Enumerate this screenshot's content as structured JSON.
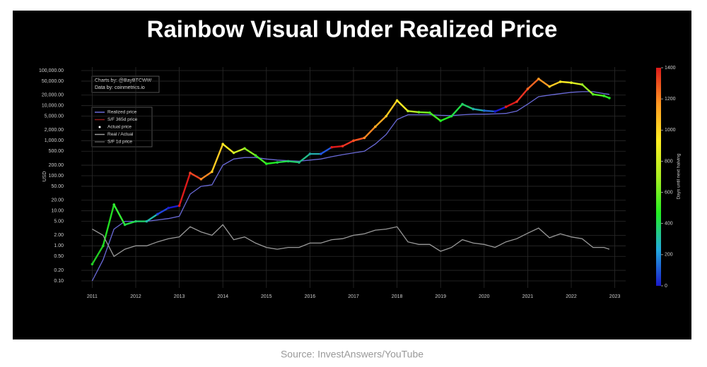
{
  "chart_data": {
    "type": "line",
    "title": "Rainbow Visual Under Realized Price",
    "caption": "Source: InvestAnswers/YouTube",
    "annotations": [
      "Charts by: @BayBTCWW",
      "Data by: coinmetrics.io"
    ],
    "y_label": "USD",
    "log_scale": true,
    "grid": true,
    "x": [
      2011.0,
      2011.25,
      2011.5,
      2011.75,
      2012.0,
      2012.25,
      2012.5,
      2012.75,
      2013.0,
      2013.25,
      2013.5,
      2013.75,
      2014.0,
      2014.25,
      2014.5,
      2014.75,
      2015.0,
      2015.25,
      2015.5,
      2015.75,
      2016.0,
      2016.25,
      2016.5,
      2016.75,
      2017.0,
      2017.25,
      2017.5,
      2017.75,
      2018.0,
      2018.25,
      2018.5,
      2018.75,
      2019.0,
      2019.25,
      2019.5,
      2019.75,
      2020.0,
      2020.25,
      2020.5,
      2020.75,
      2021.0,
      2021.25,
      2021.5,
      2021.75,
      2022.0,
      2022.25,
      2022.5,
      2022.75,
      2022.875
    ],
    "xlim": [
      2010.75,
      2023.25
    ],
    "xticks": [
      2011,
      2012,
      2013,
      2014,
      2015,
      2016,
      2017,
      2018,
      2019,
      2020,
      2021,
      2022,
      2023
    ],
    "ylim": [
      0.1,
      100000
    ],
    "yticks": [
      {
        "value": 0.1,
        "label": "0.10"
      },
      {
        "value": 0.2,
        "label": "0.20"
      },
      {
        "value": 0.5,
        "label": "0.50"
      },
      {
        "value": 1,
        "label": "1.00"
      },
      {
        "value": 2,
        "label": "2.00"
      },
      {
        "value": 5,
        "label": "5.00"
      },
      {
        "value": 10,
        "label": "10.00"
      },
      {
        "value": 20,
        "label": "20.00"
      },
      {
        "value": 50,
        "label": "50.00"
      },
      {
        "value": 100,
        "label": "100.00"
      },
      {
        "value": 200,
        "label": "200.00"
      },
      {
        "value": 500,
        "label": "500.00"
      },
      {
        "value": 1000,
        "label": "1,000.00"
      },
      {
        "value": 2000,
        "label": "2,000.00"
      },
      {
        "value": 5000,
        "label": "5,000.00"
      },
      {
        "value": 10000,
        "label": "10,000.00"
      },
      {
        "value": 20000,
        "label": "20,000.00"
      },
      {
        "value": 50000,
        "label": "50,000.00"
      },
      {
        "value": 100000,
        "label": "100,000.00"
      }
    ],
    "series": [
      {
        "name": "Realized price",
        "color": "#6a6ad8",
        "values": [
          0.1,
          0.4,
          3,
          5,
          5,
          5,
          5.5,
          6,
          7,
          30,
          50,
          55,
          200,
          300,
          330,
          330,
          300,
          280,
          270,
          260,
          280,
          300,
          350,
          400,
          450,
          500,
          800,
          1500,
          4000,
          5500,
          5500,
          5500,
          5300,
          5200,
          5500,
          5700,
          5700,
          5800,
          6000,
          7000,
          11000,
          18000,
          20000,
          22000,
          24000,
          25000,
          25000,
          22000,
          21000
        ]
      },
      {
        "name": "S/F 365d price",
        "color": "#8b1a1a"
      },
      {
        "name": "Actual price",
        "color": "#ffffff",
        "values": [
          0.3,
          1,
          15,
          4,
          5,
          5,
          8,
          12,
          14,
          120,
          80,
          130,
          800,
          450,
          600,
          380,
          220,
          240,
          260,
          240,
          420,
          420,
          650,
          700,
          1000,
          1200,
          2500,
          5000,
          14000,
          7000,
          6500,
          6300,
          3700,
          5000,
          11000,
          8000,
          7200,
          6800,
          9200,
          13000,
          30000,
          58000,
          35000,
          48000,
          45000,
          40000,
          21000,
          19000,
          16500
        ],
        "colors": [
          "#22cc22",
          "#22dd22",
          "#33ee33",
          "#22dd44",
          "#22cc66",
          "#22bbaa",
          "#2244dd",
          "#1a1acc",
          "#dd1a1a",
          "#ee4422",
          "#ff8822",
          "#ffcc22",
          "#ffee22",
          "#ccee22",
          "#88ee22",
          "#44ee22",
          "#22ee22",
          "#22dd44",
          "#22cc66",
          "#22bb88",
          "#22aaaa",
          "#2255dd",
          "#dd1a1a",
          "#ee3322",
          "#ff5522",
          "#ff8822",
          "#ffaa22",
          "#ffcc22",
          "#ffee22",
          "#bbee22",
          "#77ee22",
          "#44ee22",
          "#22ee22",
          "#22dd44",
          "#22cc66",
          "#22aaaa",
          "#2266cc",
          "#1a1acc",
          "#dd1a1a",
          "#ee3322",
          "#ff6622",
          "#ff9922",
          "#ffcc22",
          "#ffee22",
          "#ddee22",
          "#99ee22",
          "#55ee22",
          "#33ee22",
          "#22dd22"
        ]
      },
      {
        "name": "Real / Actual",
        "color": "#9a9a9a",
        "values": [
          3,
          2,
          0.5,
          0.8,
          1,
          1,
          1.3,
          1.6,
          1.8,
          3.5,
          2.5,
          2,
          4,
          1.5,
          1.8,
          1.2,
          0.9,
          0.8,
          0.9,
          0.9,
          1.2,
          1.2,
          1.5,
          1.6,
          2,
          2.2,
          2.8,
          3,
          3.5,
          1.3,
          1.1,
          1.1,
          0.7,
          0.9,
          1.5,
          1.2,
          1.1,
          0.9,
          1.3,
          1.6,
          2.3,
          3.2,
          1.7,
          2.2,
          1.8,
          1.6,
          0.9,
          0.9,
          0.8
        ]
      },
      {
        "name": "S/F 1d price",
        "color": "#555555"
      }
    ],
    "colorbar": {
      "label": "Days until next halving",
      "lim": [
        0,
        1400
      ],
      "ticks": [
        0,
        200,
        400,
        600,
        800,
        1000,
        1200,
        1400
      ],
      "colors": [
        "#1a1acc",
        "#22aadd",
        "#22ee22",
        "#aaee22",
        "#ffee22",
        "#ff9922",
        "#dd1a1a"
      ]
    }
  }
}
